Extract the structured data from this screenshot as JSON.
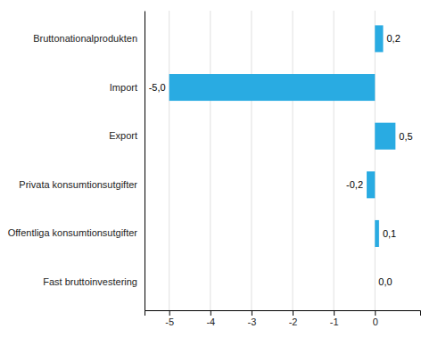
{
  "chart_data": {
    "type": "bar",
    "orientation": "horizontal",
    "categories": [
      "Fast bruttoinvestering",
      "Offentliga konsumtionsutgifter",
      "Privata konsumtionsutgifter",
      "Export",
      "Import",
      "Bruttonationalprodukten"
    ],
    "values": [
      0.0,
      0.1,
      -0.2,
      0.5,
      -5.0,
      0.2
    ],
    "value_labels": [
      "0,0",
      "0,1",
      "-0,2",
      "0,5",
      "-5,0",
      "0,2"
    ],
    "data_labels": true,
    "color": "#29ABE2",
    "xlim": [
      -5.6,
      1.1
    ],
    "xticks": [
      -5,
      -4,
      -3,
      -2,
      -1,
      0
    ],
    "grid": true
  }
}
